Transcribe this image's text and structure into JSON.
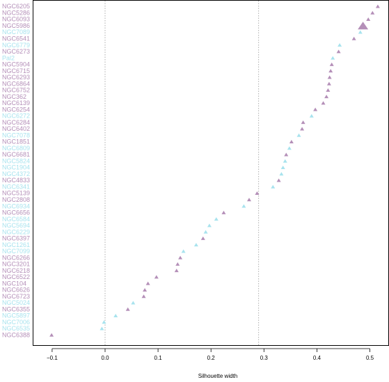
{
  "chart_data": {
    "type": "scatter",
    "title": "",
    "xlabel": "Silhouette width",
    "ylabel": "",
    "xlim": [
      -0.13,
      0.555
    ],
    "xticks": [
      -0.1,
      0.0,
      0.1,
      0.2,
      0.3,
      0.4,
      0.5
    ],
    "xtick_labels": [
      "−0.1",
      "0.0",
      "0.1",
      "0.2",
      "0.3",
      "0.4",
      "0.5"
    ],
    "reference_lines": [
      0.0,
      0.29
    ],
    "grid": false,
    "legend": "none",
    "marker": "triangle",
    "group_colors": {
      "purple": "#b48fb8",
      "cyan": "#a8e3ee"
    },
    "points": [
      {
        "label": "NGC6205",
        "x": 0.515,
        "group": "purple"
      },
      {
        "label": "NGC5286",
        "x": 0.505,
        "group": "purple"
      },
      {
        "label": "NGC6093",
        "x": 0.497,
        "group": "purple"
      },
      {
        "label": "NGC5986",
        "x": 0.487,
        "group": "purple",
        "highlight": true
      },
      {
        "label": "NGC7089",
        "x": 0.482,
        "group": "cyan"
      },
      {
        "label": "NGC6541",
        "x": 0.47,
        "group": "purple"
      },
      {
        "label": "NGC6779",
        "x": 0.443,
        "group": "cyan"
      },
      {
        "label": "NGC6273",
        "x": 0.441,
        "group": "purple"
      },
      {
        "label": "Pal2",
        "x": 0.43,
        "group": "cyan"
      },
      {
        "label": "NGC5904",
        "x": 0.428,
        "group": "purple"
      },
      {
        "label": "NGC6715",
        "x": 0.426,
        "group": "purple"
      },
      {
        "label": "NGC6293",
        "x": 0.424,
        "group": "purple"
      },
      {
        "label": "NGC6864",
        "x": 0.423,
        "group": "purple"
      },
      {
        "label": "NGC6752",
        "x": 0.421,
        "group": "purple"
      },
      {
        "label": "NGC362",
        "x": 0.418,
        "group": "purple"
      },
      {
        "label": "NGC6139",
        "x": 0.412,
        "group": "purple"
      },
      {
        "label": "NGC6254",
        "x": 0.397,
        "group": "purple"
      },
      {
        "label": "NGC6272",
        "x": 0.39,
        "group": "cyan"
      },
      {
        "label": "NGC6284",
        "x": 0.374,
        "group": "purple"
      },
      {
        "label": "NGC6402",
        "x": 0.372,
        "group": "purple"
      },
      {
        "label": "NGC7078",
        "x": 0.366,
        "group": "cyan"
      },
      {
        "label": "NGC1851",
        "x": 0.352,
        "group": "purple"
      },
      {
        "label": "NGC6809",
        "x": 0.348,
        "group": "cyan"
      },
      {
        "label": "NGC6681",
        "x": 0.342,
        "group": "purple"
      },
      {
        "label": "NGC5824",
        "x": 0.34,
        "group": "cyan"
      },
      {
        "label": "NGC1904",
        "x": 0.336,
        "group": "cyan"
      },
      {
        "label": "NGC4372",
        "x": 0.333,
        "group": "cyan"
      },
      {
        "label": "NGC4833",
        "x": 0.328,
        "group": "purple"
      },
      {
        "label": "NGC6341",
        "x": 0.317,
        "group": "cyan"
      },
      {
        "label": "NGC5139",
        "x": 0.287,
        "group": "purple"
      },
      {
        "label": "NGC2808",
        "x": 0.272,
        "group": "purple"
      },
      {
        "label": "NGC6934",
        "x": 0.262,
        "group": "cyan"
      },
      {
        "label": "NGC6656",
        "x": 0.224,
        "group": "purple"
      },
      {
        "label": "NGC6584",
        "x": 0.21,
        "group": "cyan"
      },
      {
        "label": "NGC5694",
        "x": 0.197,
        "group": "cyan"
      },
      {
        "label": "NGC6229",
        "x": 0.19,
        "group": "cyan"
      },
      {
        "label": "NGC6397",
        "x": 0.185,
        "group": "purple"
      },
      {
        "label": "NGC1261",
        "x": 0.172,
        "group": "cyan"
      },
      {
        "label": "NGC7099",
        "x": 0.148,
        "group": "cyan"
      },
      {
        "label": "NGC6266",
        "x": 0.142,
        "group": "purple"
      },
      {
        "label": "NGC3201",
        "x": 0.137,
        "group": "purple"
      },
      {
        "label": "NGC6218",
        "x": 0.135,
        "group": "purple"
      },
      {
        "label": "NGC6522",
        "x": 0.097,
        "group": "purple"
      },
      {
        "label": "NGC104",
        "x": 0.081,
        "group": "purple"
      },
      {
        "label": "NGC6626",
        "x": 0.075,
        "group": "purple"
      },
      {
        "label": "NGC6723",
        "x": 0.073,
        "group": "purple"
      },
      {
        "label": "NGC5024",
        "x": 0.053,
        "group": "cyan"
      },
      {
        "label": "NGC6355",
        "x": 0.043,
        "group": "purple"
      },
      {
        "label": "NGC5897",
        "x": 0.02,
        "group": "cyan"
      },
      {
        "label": "NGC7006",
        "x": -0.002,
        "group": "cyan"
      },
      {
        "label": "NGC6535",
        "x": -0.006,
        "group": "cyan"
      },
      {
        "label": "NGC6388",
        "x": -0.101,
        "group": "purple"
      }
    ]
  }
}
